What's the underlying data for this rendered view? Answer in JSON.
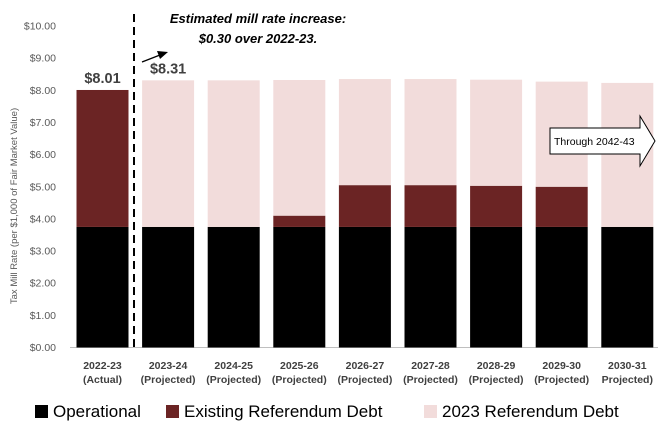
{
  "chart_data": {
    "type": "bar",
    "stacked": true,
    "ylabel": "Tax Mill Rate (per $1,000 of Fair Market Value)",
    "ylim": [
      0,
      10
    ],
    "yticks": [
      "$0.00",
      "$1.00",
      "$2.00",
      "$3.00",
      "$4.00",
      "$5.00",
      "$6.00",
      "$7.00",
      "$8.00",
      "$9.00",
      "$10.00"
    ],
    "categories": [
      [
        "2022-23",
        "(Actual)"
      ],
      [
        "2023-24",
        "(Projected)"
      ],
      [
        "2024-25",
        "(Projected)"
      ],
      [
        "2025-26",
        "(Projected)"
      ],
      [
        "2026-27",
        "(Projected)"
      ],
      [
        "2027-28",
        "(Projected)"
      ],
      [
        "2028-29",
        "(Projected)"
      ],
      [
        "2029-30",
        "(Projected)"
      ],
      [
        "2030-31",
        "Projected)"
      ]
    ],
    "series": [
      {
        "name": "Operational",
        "color": "#000000",
        "values": [
          3.75,
          3.75,
          3.75,
          3.75,
          3.75,
          3.75,
          3.75,
          3.75,
          3.75
        ]
      },
      {
        "name": "Existing Referendum Debt",
        "color": "#6b2424",
        "values": [
          4.26,
          0.0,
          0.0,
          0.35,
          1.3,
          1.3,
          1.28,
          1.25,
          0.0
        ]
      },
      {
        "name": "2023 Referendum Debt",
        "color": "#f2dcdb",
        "values": [
          0.0,
          4.56,
          4.56,
          4.22,
          3.3,
          3.3,
          3.3,
          3.27,
          4.48
        ]
      }
    ],
    "data_labels": [
      {
        "category_index": 0,
        "text": "$8.01"
      },
      {
        "category_index": 1,
        "text": "$8.31"
      }
    ],
    "annotation": {
      "line1": "Estimated mill rate increase:",
      "line2": "$0.30 over 2022-23."
    },
    "callout": "Through 2042-43",
    "legend_position": "bottom",
    "grid": false
  }
}
